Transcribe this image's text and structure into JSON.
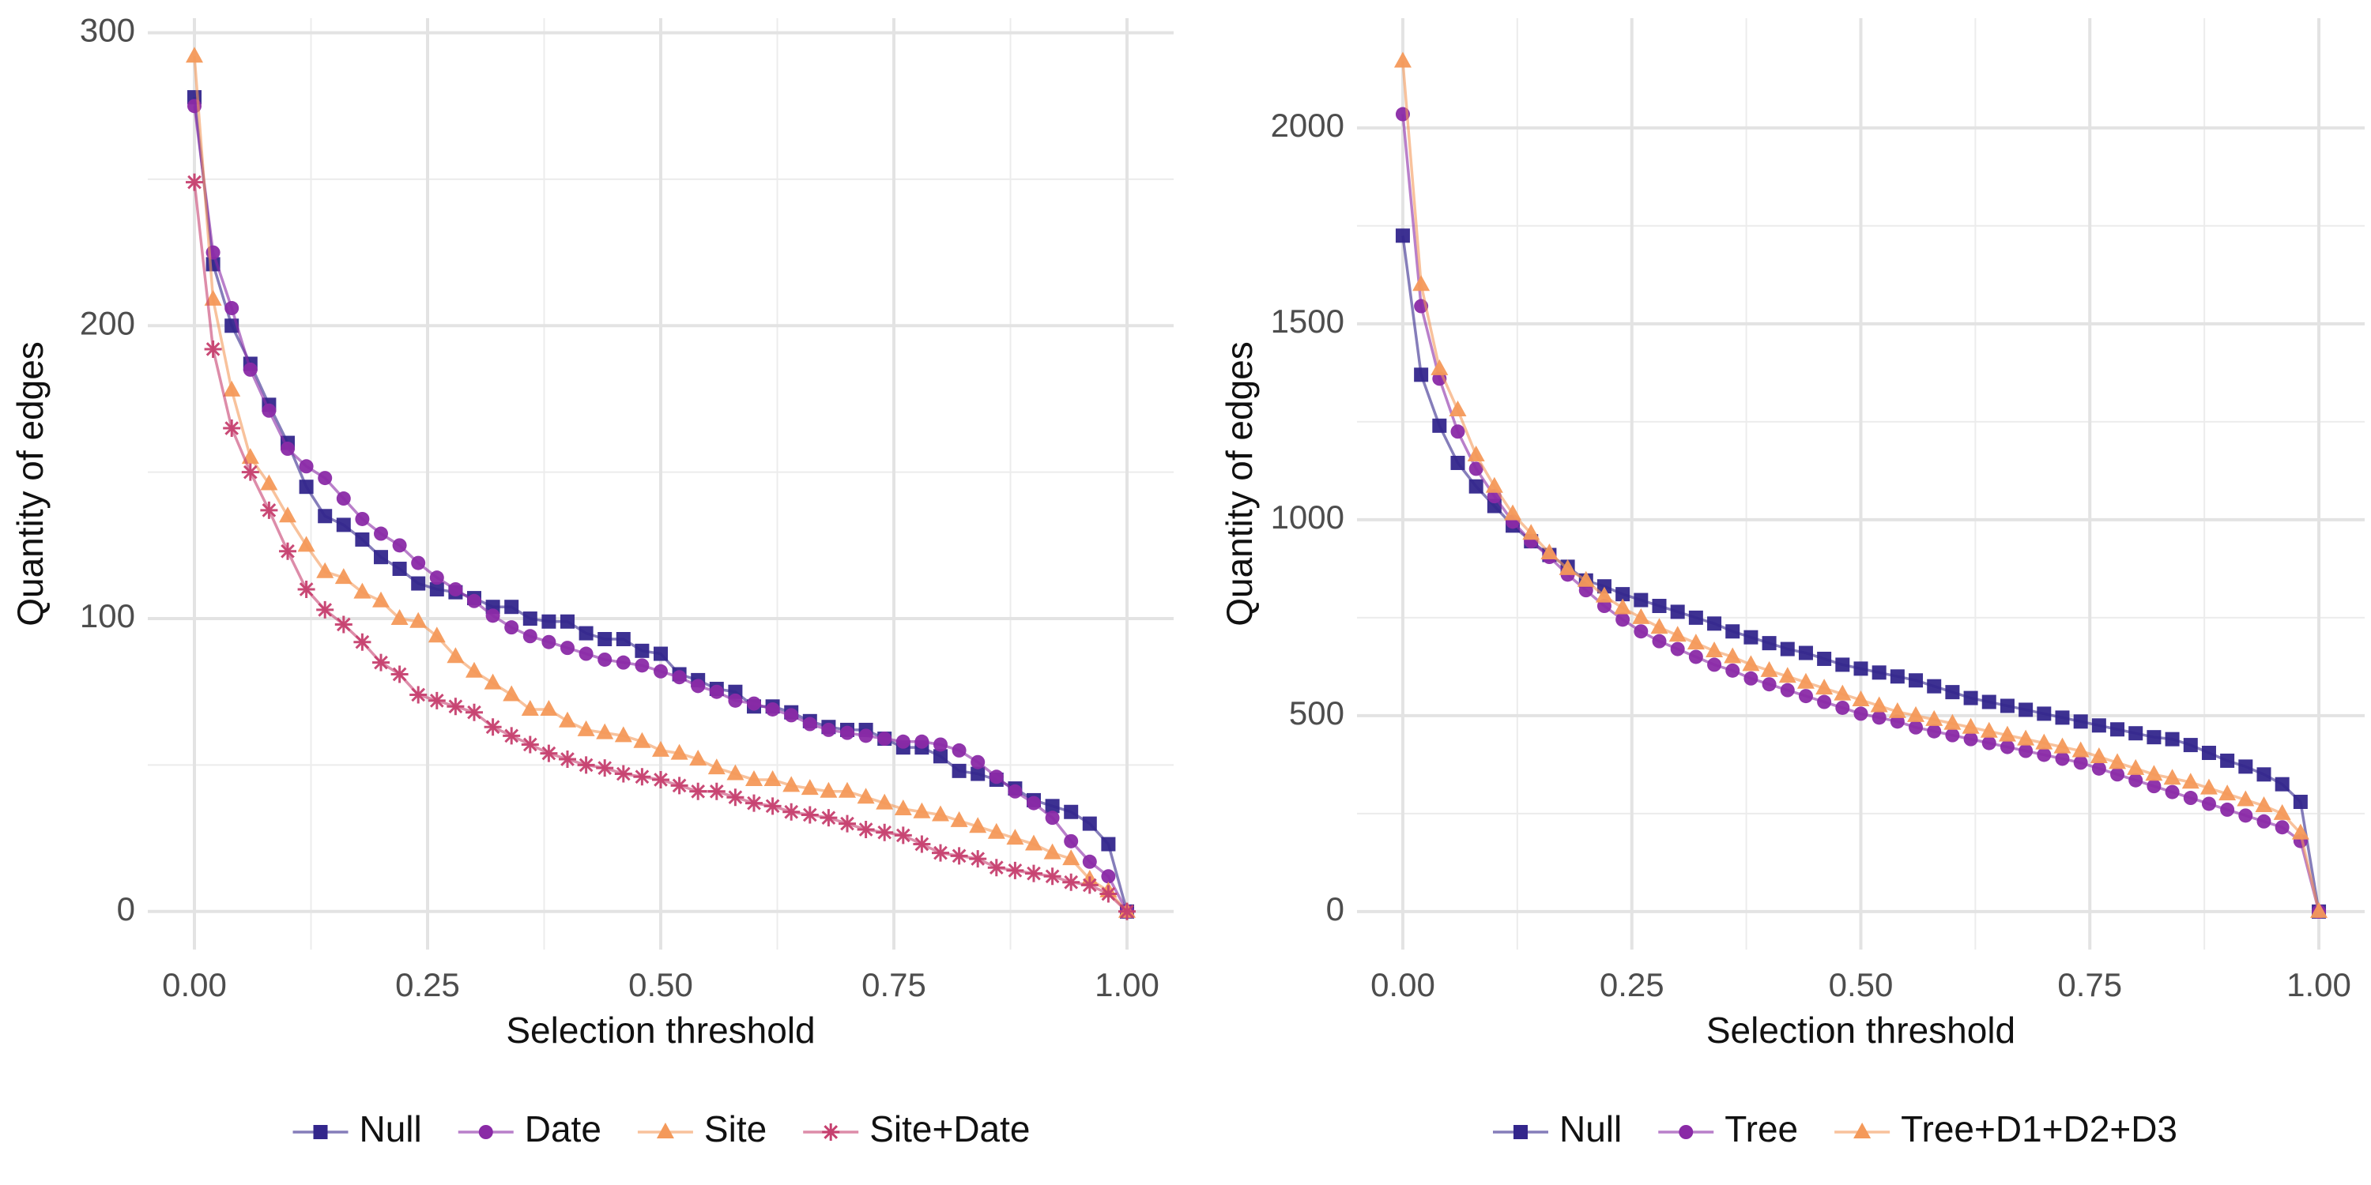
{
  "chart_data": [
    {
      "type": "line",
      "xlabel": "Selection threshold",
      "ylabel": "Quantity of edges",
      "x": [
        0,
        0.02,
        0.04,
        0.06,
        0.08,
        0.1,
        0.12,
        0.14,
        0.16,
        0.18,
        0.2,
        0.22,
        0.24,
        0.26,
        0.28,
        0.3,
        0.32,
        0.34,
        0.36,
        0.38,
        0.4,
        0.42,
        0.44,
        0.46,
        0.48,
        0.5,
        0.52,
        0.54,
        0.56,
        0.58,
        0.6,
        0.62,
        0.64,
        0.66,
        0.68,
        0.7,
        0.72,
        0.74,
        0.76,
        0.78,
        0.8,
        0.82,
        0.84,
        0.86,
        0.88,
        0.9,
        0.92,
        0.94,
        0.96,
        0.98,
        1
      ],
      "xlim": [
        -0.05,
        1.05
      ],
      "ylim": [
        -13,
        305
      ],
      "xticks": [
        {
          "value": 0,
          "label": "0.00"
        },
        {
          "value": 0.25,
          "label": "0.25"
        },
        {
          "value": 0.5,
          "label": "0.50"
        },
        {
          "value": 0.75,
          "label": "0.75"
        },
        {
          "value": 1,
          "label": "1.00"
        }
      ],
      "yticks": [
        0,
        100,
        200,
        300
      ],
      "grid": true,
      "legend": "bottom",
      "series": [
        {
          "name": "Null",
          "color": "#33268c",
          "marker": "square",
          "values": [
            278,
            221,
            200,
            187,
            173,
            160,
            145,
            135,
            132,
            127,
            121,
            117,
            112,
            110,
            109,
            107,
            104,
            104,
            100,
            99,
            99,
            95,
            93,
            93,
            89,
            88,
            81,
            79,
            76,
            75,
            70,
            70,
            68,
            65,
            63,
            62,
            62,
            59,
            56,
            56,
            53,
            48,
            47,
            45,
            42,
            38,
            36,
            34,
            30,
            23,
            0
          ]
        },
        {
          "name": "Date",
          "color": "#8a2aa6",
          "marker": "circle",
          "values": [
            275,
            225,
            206,
            185,
            171,
            158,
            152,
            148,
            141,
            134,
            129,
            125,
            119,
            114,
            110,
            106,
            101,
            97,
            94,
            92,
            90,
            88,
            86,
            85,
            84,
            82,
            80,
            77,
            75,
            72,
            71,
            69,
            67,
            64,
            62,
            61,
            60,
            59,
            58,
            58,
            57,
            55,
            51,
            46,
            41,
            37,
            32,
            24,
            17,
            12,
            0
          ]
        },
        {
          "name": "Site",
          "color": "#f4995a",
          "marker": "triangle",
          "values": [
            292,
            209,
            178,
            155,
            146,
            135,
            125,
            116,
            114,
            109,
            106,
            100,
            99,
            94,
            87,
            82,
            78,
            74,
            69,
            69,
            65,
            62,
            61,
            60,
            58,
            55,
            54,
            52,
            49,
            47,
            45,
            45,
            43,
            42,
            41,
            41,
            39,
            37,
            35,
            34,
            33,
            31,
            29,
            27,
            25,
            23,
            20,
            18,
            11,
            7,
            0
          ]
        },
        {
          "name": "Site+Date",
          "color": "#c6406f",
          "marker": "asterisk",
          "values": [
            249,
            192,
            165,
            150,
            137,
            123,
            110,
            103,
            98,
            92,
            85,
            81,
            74,
            72,
            70,
            68,
            63,
            60,
            57,
            54,
            52,
            50,
            49,
            47,
            46,
            45,
            43,
            41,
            41,
            39,
            37,
            36,
            34,
            33,
            32,
            30,
            28,
            27,
            26,
            23,
            20,
            19,
            18,
            15,
            14,
            13,
            12,
            10,
            9,
            6,
            0
          ]
        }
      ]
    },
    {
      "type": "line",
      "xlabel": "Selection threshold",
      "ylabel": "Quantity of edges",
      "x": [
        0,
        0.02,
        0.04,
        0.06,
        0.08,
        0.1,
        0.12,
        0.14,
        0.16,
        0.18,
        0.2,
        0.22,
        0.24,
        0.26,
        0.28,
        0.3,
        0.32,
        0.34,
        0.36,
        0.38,
        0.4,
        0.42,
        0.44,
        0.46,
        0.48,
        0.5,
        0.52,
        0.54,
        0.56,
        0.58,
        0.6,
        0.62,
        0.64,
        0.66,
        0.68,
        0.7,
        0.72,
        0.74,
        0.76,
        0.78,
        0.8,
        0.82,
        0.84,
        0.86,
        0.88,
        0.9,
        0.92,
        0.94,
        0.96,
        0.98,
        1
      ],
      "xlim": [
        -0.05,
        1.05
      ],
      "ylim": [
        -97,
        2280
      ],
      "xticks": [
        {
          "value": 0,
          "label": "0.00"
        },
        {
          "value": 0.25,
          "label": "0.25"
        },
        {
          "value": 0.5,
          "label": "0.50"
        },
        {
          "value": 0.75,
          "label": "0.75"
        },
        {
          "value": 1,
          "label": "1.00"
        }
      ],
      "yticks": [
        0,
        500,
        1000,
        1500,
        2000
      ],
      "grid": true,
      "legend": "bottom",
      "series": [
        {
          "name": "Null",
          "color": "#33268c",
          "marker": "square",
          "values": [
            1725,
            1370,
            1240,
            1145,
            1085,
            1035,
            985,
            945,
            910,
            880,
            845,
            830,
            810,
            795,
            780,
            765,
            750,
            735,
            715,
            700,
            685,
            670,
            660,
            645,
            630,
            620,
            610,
            600,
            590,
            575,
            560,
            545,
            535,
            525,
            515,
            505,
            495,
            485,
            475,
            465,
            455,
            445,
            440,
            425,
            405,
            385,
            370,
            350,
            325,
            280,
            0
          ]
        },
        {
          "name": "Tree",
          "color": "#8a2aa6",
          "marker": "circle",
          "values": [
            2035,
            1545,
            1360,
            1225,
            1130,
            1060,
            995,
            945,
            905,
            860,
            820,
            780,
            745,
            715,
            690,
            670,
            650,
            630,
            615,
            595,
            580,
            565,
            550,
            535,
            520,
            505,
            495,
            485,
            470,
            460,
            450,
            440,
            430,
            420,
            410,
            400,
            390,
            380,
            365,
            350,
            335,
            320,
            305,
            290,
            275,
            260,
            245,
            230,
            215,
            180,
            0
          ]
        },
        {
          "name": "Tree+D1+D2+D3",
          "color": "#f4995a",
          "marker": "triangle",
          "values": [
            2170,
            1600,
            1385,
            1280,
            1165,
            1085,
            1015,
            965,
            915,
            875,
            845,
            805,
            775,
            750,
            725,
            705,
            685,
            665,
            650,
            630,
            615,
            600,
            585,
            570,
            555,
            540,
            525,
            510,
            500,
            490,
            480,
            470,
            460,
            450,
            440,
            430,
            420,
            410,
            395,
            380,
            365,
            350,
            340,
            330,
            315,
            300,
            285,
            270,
            250,
            200,
            0
          ]
        }
      ]
    }
  ]
}
